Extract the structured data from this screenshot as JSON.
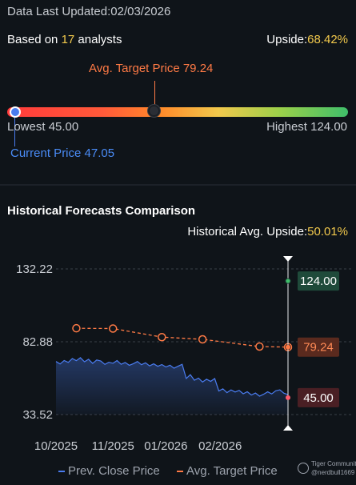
{
  "header": {
    "updated_prefix": "Data Last Updated:",
    "updated_date": "02/03/2026",
    "based_prefix": "Based on ",
    "analyst_count": "17",
    "based_suffix": " analysts",
    "upside_label": "Upside:",
    "upside_value": "68.42%"
  },
  "range": {
    "avg_label": "Avg. Target Price 79.24",
    "lowest_label": "Lowest 45.00",
    "highest_label": "Highest 124.00",
    "current_label": "Current Price 47.05",
    "lowest": 45.0,
    "highest": 124.0,
    "avg_target": 79.24,
    "current": 47.05,
    "colors": {
      "current": "#4a8cf7",
      "avg": "#ff7a45",
      "high": "#3fbf6a"
    }
  },
  "history": {
    "title": "Historical Forecasts Comparison",
    "upside_label": "Historical Avg. Upside:",
    "upside_value": "50.01%"
  },
  "chart_data": {
    "type": "line",
    "y_ticks": [
      "132.22",
      "82.88",
      "33.52"
    ],
    "ylim": [
      33.52,
      132.22
    ],
    "x_ticks": [
      "10/2025",
      "11/2025",
      "01/2026",
      "02/2026"
    ],
    "series": [
      {
        "name": "Prev. Close Price",
        "color": "#4a7cf0",
        "type": "area",
        "values": [
          [
            0,
            69.5
          ],
          [
            3,
            67.8
          ],
          [
            6,
            70.2
          ],
          [
            9,
            68.9
          ],
          [
            12,
            71.5
          ],
          [
            15,
            70.0
          ],
          [
            18,
            72.1
          ],
          [
            21,
            69.3
          ],
          [
            24,
            71.0
          ],
          [
            27,
            68.2
          ],
          [
            30,
            70.5
          ],
          [
            33,
            69.8
          ],
          [
            36,
            67.5
          ],
          [
            39,
            69.0
          ],
          [
            42,
            68.3
          ],
          [
            45,
            70.1
          ],
          [
            48,
            67.6
          ],
          [
            51,
            68.8
          ],
          [
            54,
            66.9
          ],
          [
            57,
            68.0
          ],
          [
            60,
            69.5
          ],
          [
            63,
            67.3
          ],
          [
            66,
            68.6
          ],
          [
            69,
            66.5
          ],
          [
            72,
            67.9
          ],
          [
            75,
            66.2
          ],
          [
            78,
            67.4
          ],
          [
            81,
            65.8
          ],
          [
            84,
            67.0
          ],
          [
            87,
            64.9
          ],
          [
            90,
            66.3
          ],
          [
            93,
            67.6
          ],
          [
            96,
            58.0
          ],
          [
            99,
            60.5
          ],
          [
            102,
            56.8
          ],
          [
            105,
            58.2
          ],
          [
            108,
            55.6
          ],
          [
            111,
            57.5
          ],
          [
            114,
            56.0
          ],
          [
            117,
            57.9
          ],
          [
            120,
            49.5
          ],
          [
            123,
            51.0
          ],
          [
            126,
            48.4
          ],
          [
            129,
            50.2
          ],
          [
            132,
            48.8
          ],
          [
            135,
            49.9
          ],
          [
            138,
            47.6
          ],
          [
            141,
            49.0
          ],
          [
            144,
            46.8
          ],
          [
            147,
            48.1
          ],
          [
            150,
            46.0
          ],
          [
            153,
            47.3
          ],
          [
            156,
            48.9
          ],
          [
            159,
            47.5
          ],
          [
            162,
            49.6
          ],
          [
            165,
            50.3
          ],
          [
            168,
            48.0
          ],
          [
            171,
            47.05
          ]
        ]
      },
      {
        "name": "Avg. Target Price",
        "color": "#ff7a45",
        "values": [
          [
            15,
            92.0
          ],
          [
            42,
            91.8
          ],
          [
            78,
            86.0
          ],
          [
            108,
            84.5
          ],
          [
            150,
            79.6
          ],
          [
            171,
            79.24
          ]
        ]
      }
    ],
    "forecast": {
      "high": 124.0,
      "avg": 79.24,
      "low": 45.0
    },
    "value_labels": [
      "124.00",
      "79.24",
      "45.00"
    ],
    "label_colors": {
      "high_bg": "#1f4a3a",
      "avg_bg": "#5a2a1e",
      "low_bg": "#4a1f24"
    },
    "x_range": [
      0,
      171
    ],
    "x_tick_values": [
      0,
      42,
      81,
      121
    ],
    "grid": "horizontal dashed",
    "legend": "bottom"
  },
  "legend": {
    "prev_close": "Prev. Close Price",
    "avg_target": "Avg. Target Price"
  },
  "watermark": {
    "line1": "Tiger Community",
    "line2": "@nerdbull1669"
  }
}
